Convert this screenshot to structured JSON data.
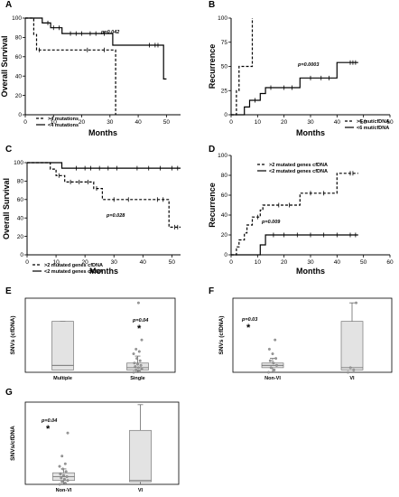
{
  "chart_data": [
    {
      "panel": "A",
      "type": "line",
      "ylabel": "Overall Survival",
      "xlabel": "Months",
      "xlim": [
        0,
        55
      ],
      "ylim": [
        0,
        100
      ],
      "xticks": [
        0,
        10,
        20,
        30,
        40,
        50
      ],
      "yticks": [
        0,
        20,
        40,
        60,
        80,
        100
      ],
      "annotation": "p=0.042",
      "legend_position": "bottom-left",
      "series": [
        {
          "name": ">4 mutations",
          "style": "dashed",
          "steps": [
            [
              0,
              100
            ],
            [
              3,
              100
            ],
            [
              3,
              83
            ],
            [
              4,
              83
            ],
            [
              4,
              67
            ],
            [
              32,
              67
            ],
            [
              32,
              0
            ]
          ],
          "censor": [
            [
              5,
              67
            ],
            [
              22,
              67
            ],
            [
              28,
              67
            ]
          ]
        },
        {
          "name": "<4 mutations",
          "style": "solid",
          "steps": [
            [
              0,
              100
            ],
            [
              6,
              100
            ],
            [
              6,
              95
            ],
            [
              9,
              95
            ],
            [
              9,
              90
            ],
            [
              13,
              90
            ],
            [
              13,
              84
            ],
            [
              31,
              84
            ],
            [
              31,
              72
            ],
            [
              49,
              72
            ],
            [
              49,
              37
            ],
            [
              50,
              37
            ]
          ],
          "censor": [
            [
              8,
              95
            ],
            [
              10,
              90
            ],
            [
              12,
              90
            ],
            [
              16,
              84
            ],
            [
              18,
              84
            ],
            [
              20,
              84
            ],
            [
              23,
              84
            ],
            [
              25,
              84
            ],
            [
              28,
              84
            ],
            [
              44,
              72
            ],
            [
              46,
              72
            ],
            [
              47,
              72
            ]
          ]
        }
      ]
    },
    {
      "panel": "B",
      "type": "line",
      "ylabel": "Recurrence",
      "xlabel": "Months",
      "xlim": [
        0,
        60
      ],
      "ylim": [
        0,
        100
      ],
      "xticks": [
        0,
        10,
        20,
        30,
        40,
        50,
        60
      ],
      "yticks": [
        0,
        25,
        50,
        75,
        100
      ],
      "annotation": "p=0.0003",
      "legend_position": "bottom-right",
      "series": [
        {
          "name": ">6 mut/cfDNA",
          "style": "dashed",
          "steps": [
            [
              0,
              0
            ],
            [
              2,
              0
            ],
            [
              2,
              25
            ],
            [
              3,
              25
            ],
            [
              3,
              50
            ],
            [
              8,
              50
            ],
            [
              8,
              100
            ]
          ],
          "censor": []
        },
        {
          "name": "<6 mut/cfDNA",
          "style": "solid",
          "steps": [
            [
              0,
              0
            ],
            [
              5,
              0
            ],
            [
              5,
              8
            ],
            [
              7,
              8
            ],
            [
              7,
              15
            ],
            [
              11,
              15
            ],
            [
              11,
              22
            ],
            [
              13,
              22
            ],
            [
              13,
              28
            ],
            [
              26,
              28
            ],
            [
              26,
              38
            ],
            [
              40,
              38
            ],
            [
              40,
              54
            ],
            [
              48,
              54
            ]
          ],
          "censor": [
            [
              9,
              15
            ],
            [
              15,
              28
            ],
            [
              20,
              28
            ],
            [
              23,
              28
            ],
            [
              30,
              38
            ],
            [
              34,
              38
            ],
            [
              37,
              38
            ],
            [
              45,
              54
            ],
            [
              46,
              54
            ],
            [
              47,
              54
            ]
          ]
        }
      ]
    },
    {
      "panel": "C",
      "type": "line",
      "ylabel": "Overall Survival",
      "xlabel": "Months",
      "xlim": [
        0,
        53
      ],
      "ylim": [
        0,
        100
      ],
      "xticks": [
        0,
        10,
        20,
        30,
        40,
        50
      ],
      "yticks": [
        0,
        20,
        40,
        60,
        80,
        100
      ],
      "annotation": "p=0.028",
      "legend_position": "bottom-left",
      "series": [
        {
          "name": ">2 mutated genes cfDNA",
          "style": "dashed",
          "steps": [
            [
              0,
              100
            ],
            [
              8,
              100
            ],
            [
              8,
              93
            ],
            [
              10,
              93
            ],
            [
              10,
              86
            ],
            [
              13,
              86
            ],
            [
              13,
              79
            ],
            [
              23,
              79
            ],
            [
              23,
              72
            ],
            [
              26,
              72
            ],
            [
              26,
              60
            ],
            [
              49,
              60
            ],
            [
              49,
              30
            ],
            [
              53,
              30
            ]
          ],
          "censor": [
            [
              11,
              86
            ],
            [
              15,
              79
            ],
            [
              18,
              79
            ],
            [
              21,
              79
            ],
            [
              24,
              72
            ],
            [
              30,
              60
            ],
            [
              35,
              60
            ],
            [
              45,
              60
            ],
            [
              47,
              60
            ],
            [
              51,
              30
            ],
            [
              52,
              30
            ]
          ]
        },
        {
          "name": "<2 mutated genes cfDNA",
          "style": "solid",
          "steps": [
            [
              0,
              100
            ],
            [
              12,
              100
            ],
            [
              12,
              94
            ],
            [
              53,
              94
            ]
          ],
          "censor": [
            [
              17,
              94
            ],
            [
              20,
              94
            ],
            [
              22,
              94
            ],
            [
              25,
              94
            ],
            [
              28,
              94
            ],
            [
              31,
              94
            ],
            [
              38,
              94
            ],
            [
              42,
              94
            ],
            [
              46,
              94
            ],
            [
              50,
              94
            ],
            [
              52,
              94
            ]
          ]
        }
      ]
    },
    {
      "panel": "D",
      "type": "line",
      "ylabel": "Recurrence",
      "xlabel": "Months",
      "xlim": [
        0,
        60
      ],
      "ylim": [
        0,
        100
      ],
      "xticks": [
        0,
        10,
        20,
        30,
        40,
        50,
        60
      ],
      "yticks": [
        0,
        20,
        40,
        60,
        80,
        100
      ],
      "annotation": "p=0.009",
      "legend_position": "top-right",
      "series": [
        {
          "name": ">2 mutated genes cfDNA",
          "style": "dashed",
          "steps": [
            [
              0,
              0
            ],
            [
              2,
              0
            ],
            [
              2,
              8
            ],
            [
              3,
              8
            ],
            [
              3,
              15
            ],
            [
              5,
              15
            ],
            [
              5,
              22
            ],
            [
              6,
              22
            ],
            [
              6,
              30
            ],
            [
              8,
              30
            ],
            [
              8,
              38
            ],
            [
              11,
              38
            ],
            [
              11,
              45
            ],
            [
              12,
              45
            ],
            [
              12,
              50
            ],
            [
              26,
              50
            ],
            [
              26,
              62
            ],
            [
              40,
              62
            ],
            [
              40,
              82
            ],
            [
              48,
              82
            ]
          ],
          "censor": [
            [
              10,
              38
            ],
            [
              18,
              50
            ],
            [
              22,
              50
            ],
            [
              30,
              62
            ],
            [
              35,
              62
            ],
            [
              45,
              82
            ],
            [
              46,
              82
            ]
          ]
        },
        {
          "name": "<2 mutated genes cfDNA",
          "style": "solid",
          "steps": [
            [
              0,
              0
            ],
            [
              11,
              0
            ],
            [
              11,
              10
            ],
            [
              13,
              10
            ],
            [
              13,
              20
            ],
            [
              48,
              20
            ]
          ],
          "censor": [
            [
              16,
              20
            ],
            [
              20,
              20
            ],
            [
              25,
              20
            ],
            [
              30,
              20
            ],
            [
              35,
              20
            ],
            [
              40,
              20
            ],
            [
              45,
              20
            ],
            [
              47,
              20
            ]
          ]
        }
      ]
    },
    {
      "panel": "E",
      "type": "box",
      "ylabel": "SNVs (cfDNA)",
      "categories": [
        "Multiple",
        "Single"
      ],
      "annotation": "p=0.04",
      "star": "*",
      "boxes": [
        {
          "min": 1,
          "q1": 1,
          "median": 3,
          "q3": 22,
          "max": 22,
          "outliers": []
        },
        {
          "min": 0,
          "q1": 1,
          "median": 2,
          "q3": 4,
          "max": 7,
          "outliers": [
            0,
            0.5,
            1,
            1.5,
            2,
            2.5,
            3,
            3.5,
            4,
            5,
            6,
            8,
            9,
            10,
            14,
            30
          ]
        }
      ],
      "ylim": [
        0,
        32
      ]
    },
    {
      "panel": "F",
      "type": "box",
      "ylabel": "SNVs (cfDNA)",
      "categories": [
        "Non-VI",
        "VI"
      ],
      "annotation": "p=0.03",
      "star": "*",
      "boxes": [
        {
          "min": 0,
          "q1": 2,
          "median": 3,
          "q3": 4,
          "max": 6,
          "outliers": [
            0,
            1,
            2,
            3,
            4,
            5,
            6,
            8,
            10,
            14
          ]
        },
        {
          "min": 1,
          "q1": 1,
          "median": 2,
          "q3": 22,
          "max": 30,
          "outliers": [
            0,
            1,
            2,
            30
          ]
        }
      ],
      "ylim": [
        0,
        32
      ]
    },
    {
      "panel": "G",
      "type": "box",
      "ylabel": "SNVs/cfDNA",
      "categories": [
        "Non-VI",
        "VI"
      ],
      "annotation": "p=0.04",
      "star": "*",
      "boxes": [
        {
          "min": 0,
          "q1": 1.5,
          "median": 3,
          "q3": 4.5,
          "max": 6,
          "outliers": [
            0,
            0.5,
            1,
            1.5,
            2,
            2.5,
            3,
            3.5,
            4,
            5,
            6,
            7,
            8,
            11,
            20
          ]
        },
        {
          "min": 0,
          "q1": 1,
          "median": 1.5,
          "q3": 21,
          "max": 31,
          "outliers": []
        }
      ],
      "ylim": [
        0,
        32
      ]
    }
  ]
}
